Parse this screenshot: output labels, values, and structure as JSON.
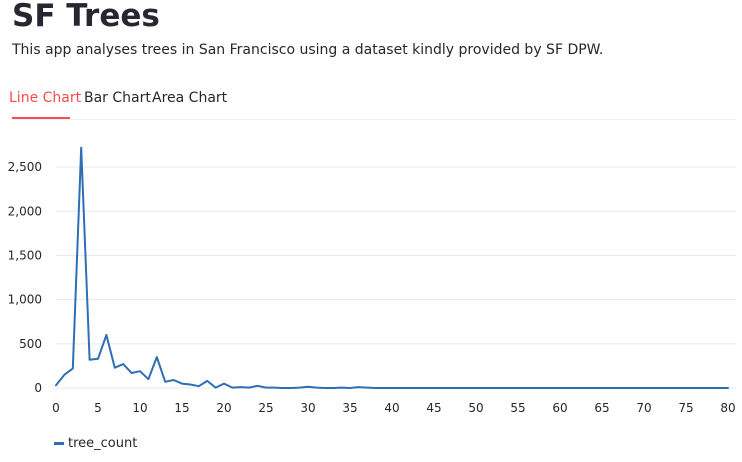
{
  "app": {
    "title": "SF Trees",
    "subtitle": "This app analyses trees in San Francisco using a dataset kindly provided by SF DPW."
  },
  "tabs": [
    {
      "label": "Line Chart",
      "active": true
    },
    {
      "label": "Bar Chart",
      "active": false
    },
    {
      "label": "Area Chart",
      "active": false
    }
  ],
  "colors": {
    "accent": "#ff4b4b",
    "series": "#2f6eb5",
    "text": "#262730",
    "grid": "#e6e9ef"
  },
  "chart_data": {
    "type": "line",
    "title": "",
    "xlabel": "",
    "ylabel": "",
    "xlim": [
      0,
      80
    ],
    "ylim": [
      0,
      2750
    ],
    "x_ticks": [
      0,
      5,
      10,
      15,
      20,
      25,
      30,
      35,
      40,
      45,
      50,
      55,
      60,
      65,
      70,
      75,
      80
    ],
    "x_tick_labels": [
      "0",
      "5",
      "10",
      "15",
      "20",
      "25",
      "30",
      "35",
      "40",
      "45",
      "50",
      "55",
      "60",
      "65",
      "70",
      "75",
      "80"
    ],
    "y_ticks": [
      0,
      500,
      1000,
      1500,
      2000,
      2500
    ],
    "y_tick_labels": [
      "0",
      "500",
      "1,000",
      "1,500",
      "2,000",
      "2,500"
    ],
    "grid": "horizontal",
    "legend": "bottom-left",
    "series": [
      {
        "name": "tree_count",
        "x": [
          0,
          1,
          2,
          3,
          4,
          5,
          6,
          7,
          8,
          9,
          10,
          11,
          12,
          13,
          14,
          15,
          16,
          17,
          18,
          19,
          20,
          21,
          22,
          23,
          24,
          25,
          26,
          27,
          28,
          29,
          30,
          31,
          32,
          33,
          34,
          35,
          36,
          37,
          38,
          39,
          40,
          45,
          50,
          55,
          60,
          65,
          70,
          75,
          80
        ],
        "y": [
          30,
          150,
          220,
          2720,
          320,
          330,
          600,
          230,
          270,
          170,
          190,
          100,
          350,
          70,
          90,
          50,
          40,
          20,
          80,
          5,
          50,
          5,
          10,
          5,
          25,
          5,
          5,
          0,
          0,
          5,
          15,
          5,
          0,
          0,
          5,
          0,
          10,
          5,
          0,
          0,
          0,
          0,
          0,
          0,
          0,
          0,
          0,
          0,
          0
        ]
      }
    ]
  }
}
